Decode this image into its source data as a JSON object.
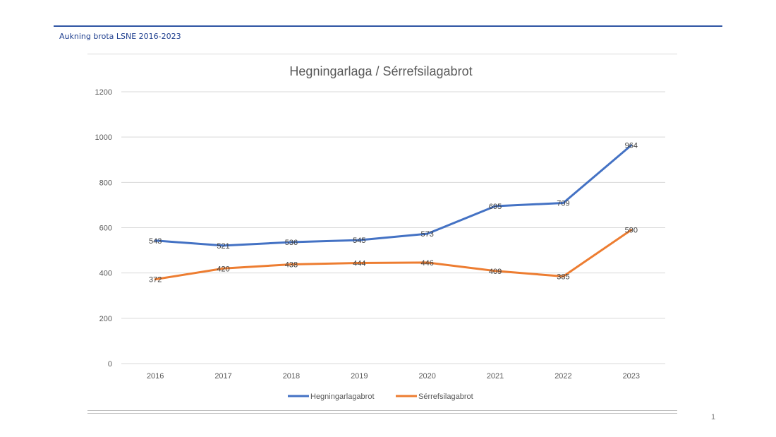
{
  "slide": {
    "header": "Aukning brota LSNE 2016-2023",
    "page_number": "1"
  },
  "colors": {
    "series_1": "#4472c4",
    "series_2": "#ed7d31",
    "header_text": "#1f3f8f",
    "header_rule": "#2f55a4"
  },
  "chart_data": {
    "type": "line",
    "title": "Hegningarlaga / Sérrefsilagabrot",
    "xlabel": "",
    "ylabel": "",
    "categories": [
      "2016",
      "2017",
      "2018",
      "2019",
      "2020",
      "2021",
      "2022",
      "2023"
    ],
    "ylim": [
      0,
      1200
    ],
    "yticks": [
      0,
      200,
      400,
      600,
      800,
      1000,
      1200
    ],
    "grid": true,
    "legend_position": "bottom",
    "data_labels": true,
    "series": [
      {
        "name": "Hegningarlagabrot",
        "values": [
          543,
          521,
          536,
          545,
          573,
          695,
          709,
          964
        ]
      },
      {
        "name": "Sérrefsilagabrot",
        "values": [
          372,
          420,
          438,
          444,
          446,
          409,
          385,
          590
        ]
      }
    ]
  }
}
